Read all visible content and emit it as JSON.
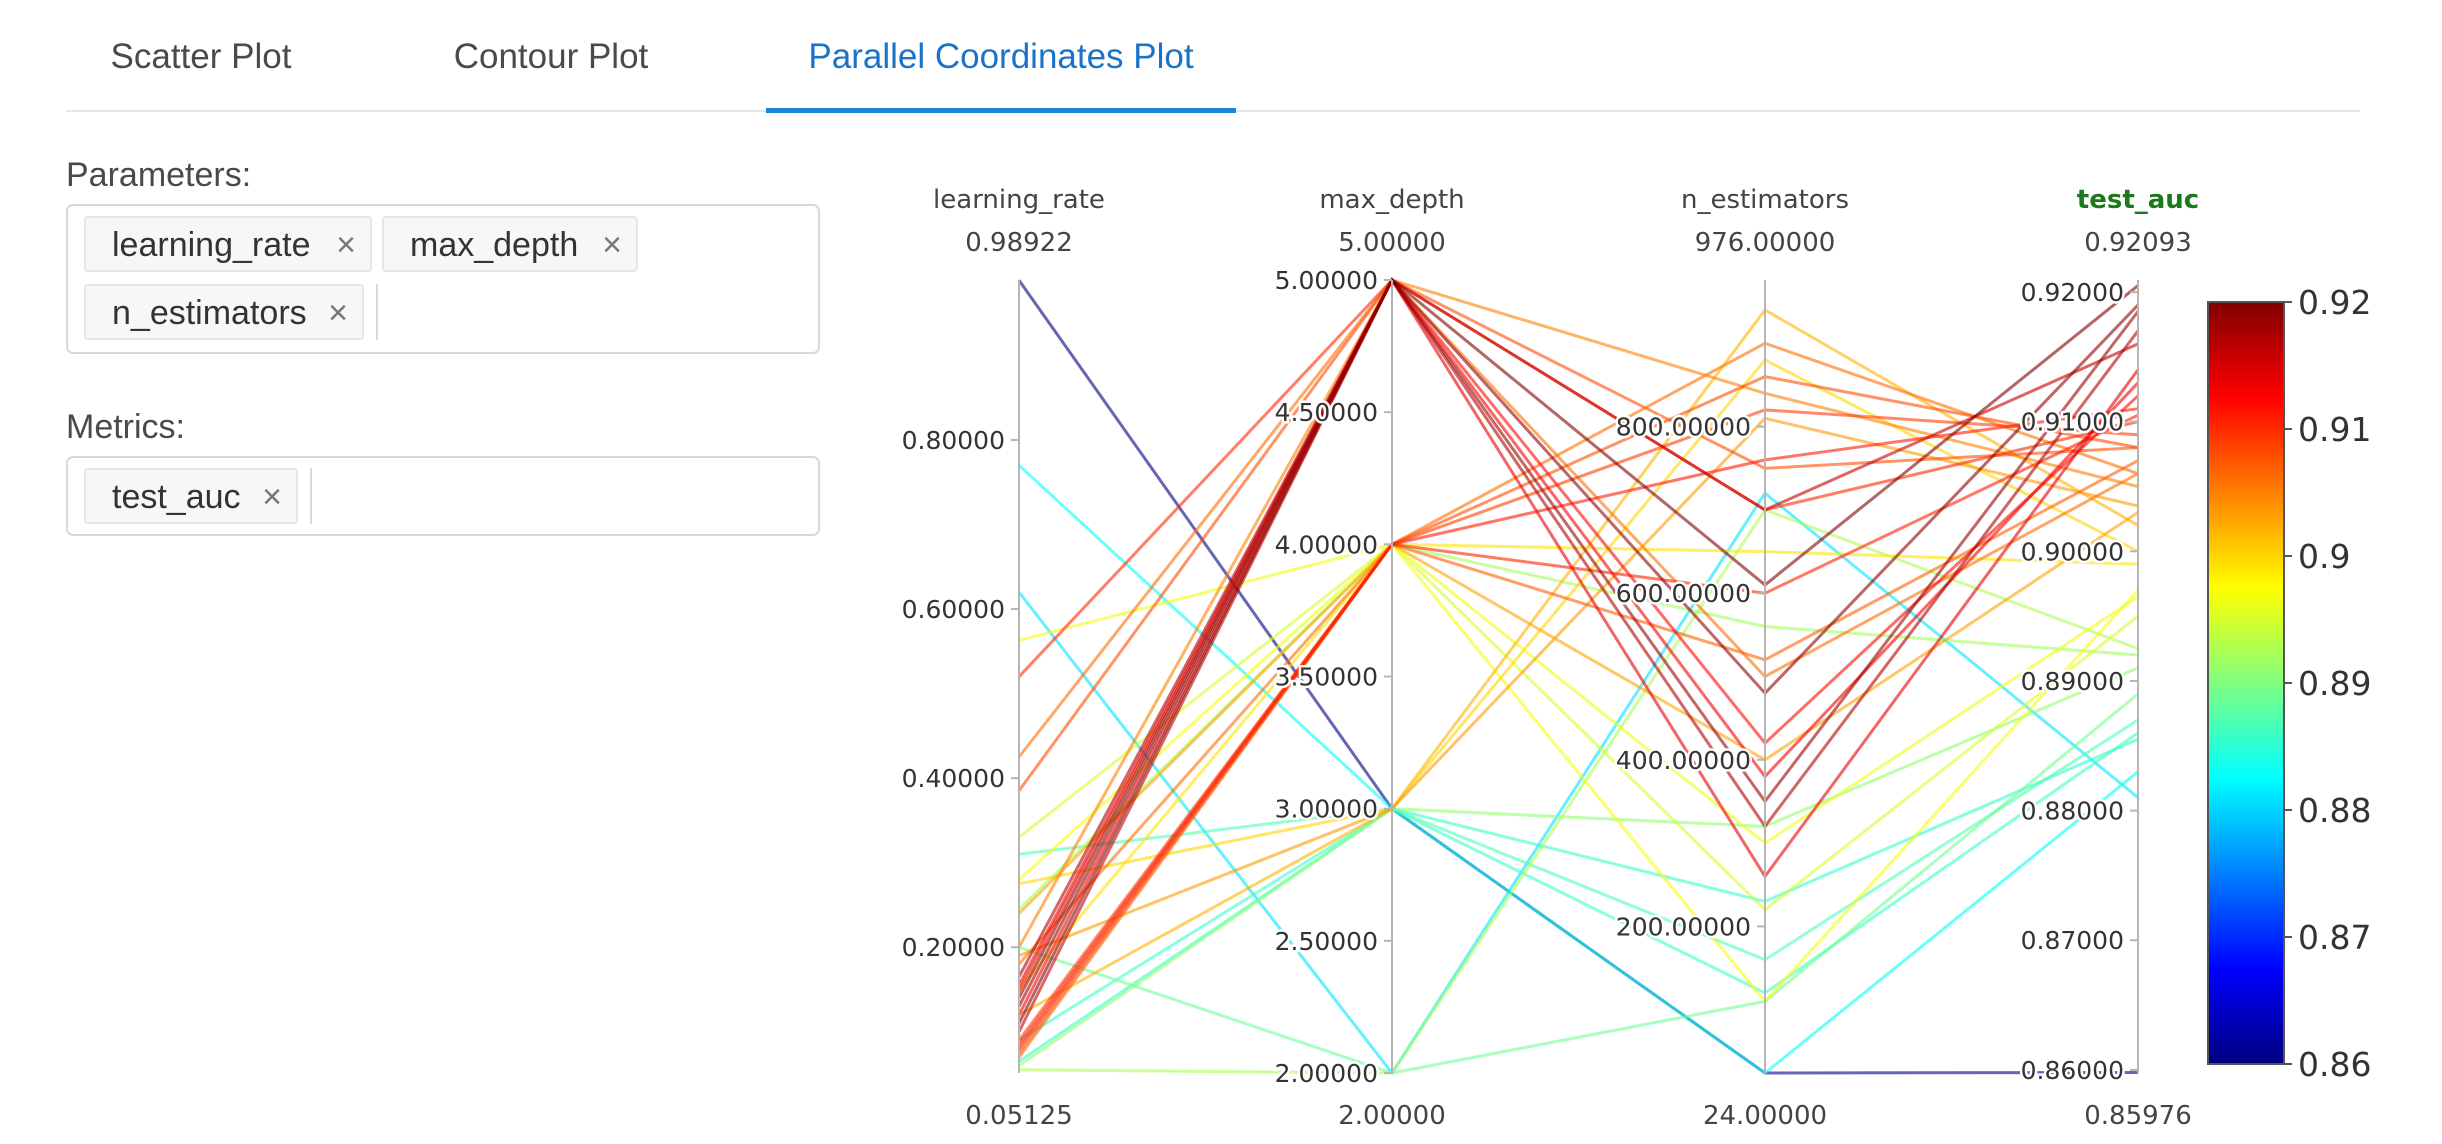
{
  "tabs": [
    {
      "label": "Scatter Plot"
    },
    {
      "label": "Contour Plot"
    },
    {
      "label": "Parallel Coordinates Plot"
    }
  ],
  "active_tab": "Parallel Coordinates Plot",
  "parameters": {
    "label": "Parameters:",
    "chips": [
      "learning_rate",
      "max_depth",
      "n_estimators"
    ],
    "remove_glyph": "×"
  },
  "metrics": {
    "label": "Metrics:",
    "chips": [
      "test_auc"
    ],
    "remove_glyph": "×"
  },
  "colors": {
    "active_tab": "#1a73c8",
    "metric_title": "#1a7a1a",
    "axis": "#b5b5b5"
  },
  "chart_data": {
    "type": "parcoords",
    "axes": [
      {
        "name": "learning_rate",
        "range": [
          0.05125,
          0.98922
        ],
        "ticks": [
          "0.20000",
          "0.40000",
          "0.60000",
          "0.80000"
        ],
        "tick_values": [
          0.2,
          0.4,
          0.6,
          0.8
        ],
        "top_label": "0.98922",
        "bottom_label": "0.05125"
      },
      {
        "name": "max_depth",
        "range": [
          2,
          5
        ],
        "ticks": [
          "2.00000",
          "2.50000",
          "3.00000",
          "3.50000",
          "4.00000",
          "4.50000",
          "5.00000"
        ],
        "tick_values": [
          2,
          2.5,
          3,
          3.5,
          4,
          4.5,
          5
        ],
        "top_label": "5.00000",
        "bottom_label": "2.00000"
      },
      {
        "name": "n_estimators",
        "range": [
          24,
          976
        ],
        "ticks": [
          "200.00000",
          "400.00000",
          "600.00000",
          "800.00000"
        ],
        "tick_values": [
          200,
          400,
          600,
          800
        ],
        "top_label": "976.00000",
        "bottom_label": "24.00000"
      },
      {
        "name": "test_auc",
        "range": [
          0.85976,
          0.92093
        ],
        "ticks": [
          "0.86000",
          "0.87000",
          "0.88000",
          "0.89000",
          "0.90000",
          "0.91000",
          "0.92000"
        ],
        "tick_values": [
          0.86,
          0.87,
          0.88,
          0.89,
          0.9,
          0.91,
          0.92
        ],
        "top_label": "0.92093",
        "bottom_label": "0.85976",
        "highlight": true
      }
    ],
    "colorscale": {
      "min": 0.86,
      "max": 0.92,
      "ticks": [
        "0.86",
        "0.87",
        "0.88",
        "0.89",
        "0.9",
        "0.91",
        "0.92"
      ],
      "tick_values": [
        0.86,
        0.87,
        0.88,
        0.89,
        0.9,
        0.91,
        0.92
      ]
    },
    "lines": [
      [
        0.989,
        3,
        24,
        0.8598
      ],
      [
        0.77,
        3,
        24,
        0.883
      ],
      [
        0.62,
        2,
        720,
        0.881
      ],
      [
        0.563,
        4,
        300,
        0.8965
      ],
      [
        0.52,
        5,
        700,
        0.91
      ],
      [
        0.425,
        5,
        500,
        0.906
      ],
      [
        0.385,
        5,
        750,
        0.908
      ],
      [
        0.33,
        4,
        220,
        0.895
      ],
      [
        0.28,
        4,
        110,
        0.897
      ],
      [
        0.275,
        3,
        880,
        0.9
      ],
      [
        0.245,
        4,
        560,
        0.892
      ],
      [
        0.2,
        5,
        840,
        0.905
      ],
      [
        0.19,
        3,
        810,
        0.9035
      ],
      [
        0.165,
        5,
        320,
        0.917
      ],
      [
        0.155,
        5,
        260,
        0.914
      ],
      [
        0.148,
        5,
        420,
        0.912
      ],
      [
        0.14,
        5,
        480,
        0.919
      ],
      [
        0.13,
        5,
        350,
        0.9185
      ],
      [
        0.12,
        5,
        380,
        0.913
      ],
      [
        0.11,
        5,
        610,
        0.9205
      ],
      [
        0.1,
        5,
        700,
        0.916
      ],
      [
        0.09,
        4,
        820,
        0.909
      ],
      [
        0.085,
        4,
        760,
        0.911
      ],
      [
        0.08,
        4,
        600,
        0.9105
      ],
      [
        0.075,
        4,
        860,
        0.908
      ],
      [
        0.07,
        4,
        520,
        0.907
      ],
      [
        0.065,
        3,
        230,
        0.8855
      ],
      [
        0.06,
        3,
        320,
        0.891
      ],
      [
        0.055,
        2,
        700,
        0.8925
      ],
      [
        0.09,
        3,
        120,
        0.886
      ],
      [
        0.2,
        2,
        110,
        0.889
      ],
      [
        0.31,
        3,
        160,
        0.887
      ],
      [
        0.18,
        4,
        900,
        0.906
      ],
      [
        0.15,
        4,
        650,
        0.899
      ],
      [
        0.12,
        3,
        940,
        0.902
      ],
      [
        0.24,
        4,
        400,
        0.903
      ]
    ]
  }
}
